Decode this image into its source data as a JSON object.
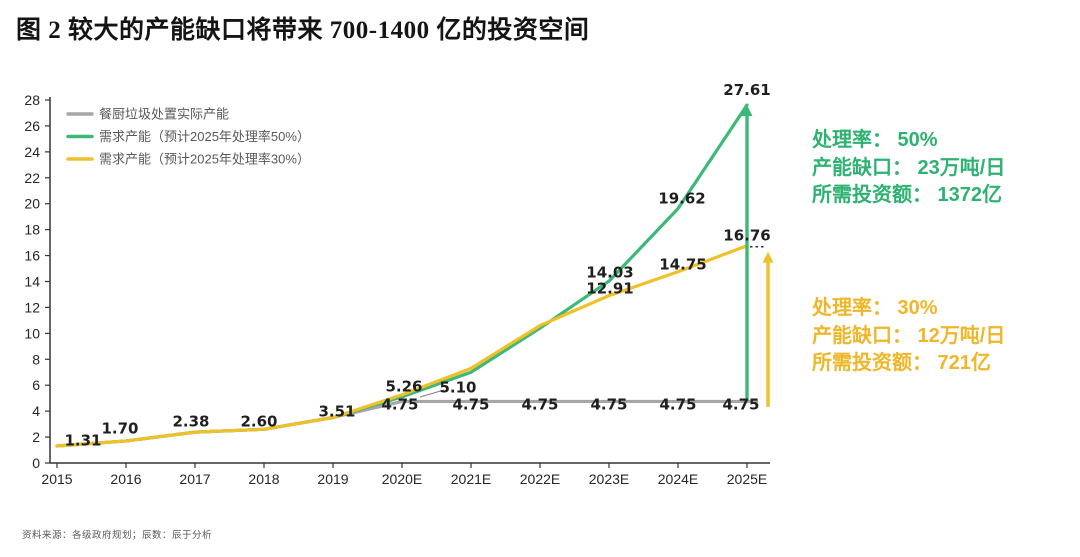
{
  "title": "图 2 较大的产能缺口将带来 700-1400 亿的投资空间",
  "footer": "资料来源：各级政府规划；辰数：辰于分析",
  "colors": {
    "green": "#3cb878",
    "yellow": "#f0c029",
    "gray": "#a6a6a6",
    "axis": "#333333",
    "label_text": "#1f1f1f",
    "legend_text": "#595959",
    "anno_green": "#2eb271",
    "anno_yellow": "#f0b629"
  },
  "annotations": {
    "green": {
      "lines": [
        "处理率： 50%",
        "产能缺口： 23万吨/日",
        "所需投资额： 1372亿"
      ]
    },
    "yellow": {
      "lines": [
        "处理率： 30%",
        "产能缺口： 12万吨/日",
        "所需投资额： 721亿"
      ]
    }
  },
  "chart_data": {
    "type": "line",
    "title": "",
    "xlabel": "",
    "ylabel": "",
    "ylim": [
      0,
      28
    ],
    "ytick_step": 2,
    "grid": false,
    "legend_position": "top-left",
    "categories": [
      "2015",
      "2016",
      "2017",
      "2018",
      "2019",
      "2020E",
      "2021E",
      "2022E",
      "2023E",
      "2024E",
      "2025E"
    ],
    "series": [
      {
        "name": "餐厨垃圾处置实际产能",
        "color_key": "gray",
        "values": [
          1.31,
          1.7,
          2.38,
          2.6,
          3.51,
          4.75,
          4.75,
          4.75,
          4.75,
          4.75,
          4.75
        ]
      },
      {
        "name": "需求产能（预计2025年处理率50%）",
        "color_key": "green",
        "values": [
          1.31,
          1.7,
          2.38,
          2.6,
          3.51,
          5.1,
          7.0,
          10.4,
          14.03,
          19.62,
          27.61
        ]
      },
      {
        "name": "需求产能（预计2025年处理率30%）",
        "color_key": "yellow",
        "values": [
          1.31,
          1.7,
          2.38,
          2.6,
          3.51,
          5.26,
          7.3,
          10.6,
          12.91,
          14.75,
          16.76
        ]
      }
    ],
    "point_labels": [
      {
        "text": "1.31",
        "i": 0,
        "v": 1.77,
        "dx": 26
      },
      {
        "text": "1.70",
        "i": 1,
        "v": 2.7,
        "dx": -6
      },
      {
        "text": "2.38",
        "i": 2,
        "v": 3.24,
        "dx": -4
      },
      {
        "text": "2.60",
        "i": 3,
        "v": 3.24,
        "dx": -5
      },
      {
        "text": "3.51",
        "i": 4,
        "v": 4.0,
        "dx": 4
      },
      {
        "text": "5.26",
        "i": 5,
        "v": 5.94,
        "dx": 2
      },
      {
        "text": "5.10",
        "i": 5,
        "v": 5.86,
        "dx": 56,
        "leader": {
          "dx1": 42,
          "v1": 5.63,
          "dx2": 18,
          "v2": 5.09
        }
      },
      {
        "text": "4.75",
        "i": 5,
        "v": 4.55,
        "dx": -2
      },
      {
        "text": "4.75",
        "i": 6,
        "v": 4.55,
        "dx": 0
      },
      {
        "text": "4.75",
        "i": 7,
        "v": 4.55,
        "dx": 0
      },
      {
        "text": "4.75",
        "i": 8,
        "v": 4.55,
        "dx": 0
      },
      {
        "text": "4.75",
        "i": 9,
        "v": 4.55,
        "dx": 0
      },
      {
        "text": "4.75",
        "i": 10,
        "v": 4.55,
        "dx": -6
      },
      {
        "text": "14.03",
        "i": 8,
        "v": 14.74,
        "dx": 1
      },
      {
        "text": "12.91",
        "i": 8,
        "v": 13.5,
        "dx": 1
      },
      {
        "text": "19.62",
        "i": 9,
        "v": 20.45,
        "dx": 4
      },
      {
        "text": "14.75",
        "i": 9,
        "v": 15.35,
        "dx": 5
      },
      {
        "text": "27.61",
        "i": 10,
        "v": 28.8,
        "dx": 0
      },
      {
        "text": "16.76",
        "i": 10,
        "v": 17.6,
        "dx": 0
      }
    ],
    "arrows": [
      {
        "i": 10,
        "dx": 0,
        "from": 4.75,
        "to": 27.61,
        "color_key": "green"
      },
      {
        "i": 10,
        "dx": 21,
        "from": 4.33,
        "to": 16.3,
        "color_key": "yellow"
      }
    ],
    "dotted_link": {
      "i": 10,
      "dx1": 3,
      "dx2": 17,
      "v": 16.68
    }
  }
}
